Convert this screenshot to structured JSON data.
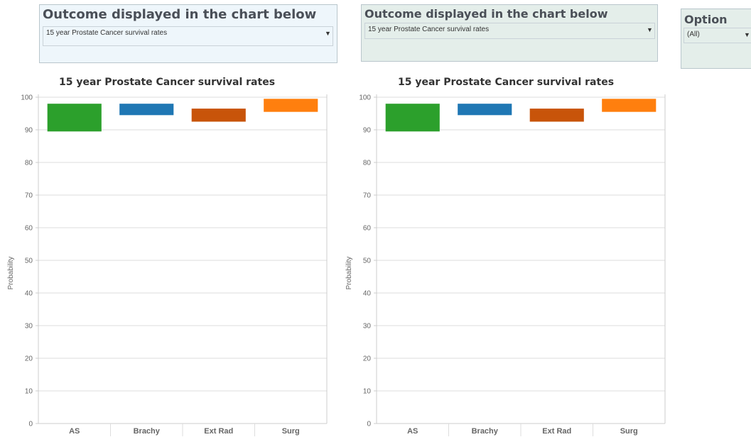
{
  "filters": [
    {
      "title": "Outcome displayed in the chart below",
      "value": "15 year Prostate Cancer survival rates"
    },
    {
      "title": "Outcome displayed in the chart below",
      "value": "15 year Prostate Cancer survival rates"
    },
    {
      "title": "Option",
      "value": "(All)"
    }
  ],
  "dropdown_arrow_glyph": "▼",
  "colors": {
    "filter_left_bg": "#eef6fb",
    "filter_right_bg": "#e4eeea",
    "gridline": "#dddddd",
    "axis": "#cccccc"
  },
  "chart_data": [
    {
      "type": "bar",
      "subtype": "floating-range",
      "title": "15 year Prostate Cancer survival rates",
      "ylabel": "Probability",
      "xlabel": "",
      "ylim": [
        0,
        100
      ],
      "yticks": [
        0,
        10,
        20,
        30,
        40,
        50,
        60,
        70,
        80,
        90,
        100
      ],
      "grid": true,
      "categories": [
        "AS",
        "Brachy",
        "Ext Rad",
        "Surg"
      ],
      "ranges": [
        {
          "low": 89.5,
          "high": 98
        },
        {
          "low": 94.5,
          "high": 98
        },
        {
          "low": 92.5,
          "high": 96.5
        },
        {
          "low": 95.5,
          "high": 99.5
        }
      ],
      "colors": [
        "#2ca02c",
        "#1f77b4",
        "#c8540a",
        "#ff7f0e"
      ]
    },
    {
      "type": "bar",
      "subtype": "floating-range",
      "title": "15 year Prostate Cancer survival rates",
      "ylabel": "Probability",
      "xlabel": "",
      "ylim": [
        0,
        100
      ],
      "yticks": [
        0,
        10,
        20,
        30,
        40,
        50,
        60,
        70,
        80,
        90,
        100
      ],
      "grid": true,
      "categories": [
        "AS",
        "Brachy",
        "Ext Rad",
        "Surg"
      ],
      "ranges": [
        {
          "low": 89.5,
          "high": 98
        },
        {
          "low": 94.5,
          "high": 98
        },
        {
          "low": 92.5,
          "high": 96.5
        },
        {
          "low": 95.5,
          "high": 99.5
        }
      ],
      "colors": [
        "#2ca02c",
        "#1f77b4",
        "#c8540a",
        "#ff7f0e"
      ]
    }
  ]
}
